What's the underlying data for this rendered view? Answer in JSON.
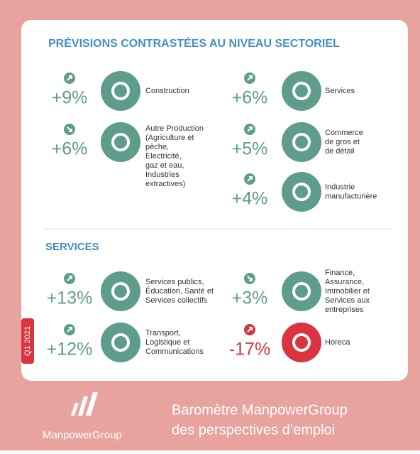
{
  "sections": [
    {
      "title": "PRÉVISIONS CONTRASTÉES AU NIVEAU SECTORIEL",
      "columns": [
        [
          {
            "change": "+9%",
            "trend": "up",
            "label": [
              "Construction"
            ]
          },
          {
            "change": "+6%",
            "trend": "down",
            "label": [
              "Autre Production",
              "(Agriculture et",
              "pêche,",
              "Electricité,",
              "gaz et eau,",
              "Industries",
              "extractives)"
            ]
          }
        ],
        [
          {
            "change": "+6%",
            "trend": "up",
            "label": [
              "Services"
            ]
          },
          {
            "change": "+5%",
            "trend": "up",
            "label": [
              "Commerce",
              "de gros et",
              "de détail"
            ]
          },
          {
            "change": "+4%",
            "trend": "up",
            "label": [
              "Industrie",
              "manufacturière"
            ]
          }
        ]
      ]
    },
    {
      "title": "SERVICES",
      "columns": [
        [
          {
            "change": "+13%",
            "trend": "up",
            "label": [
              "Services publics,",
              "Éducation, Santé et",
              "Services collectifs"
            ]
          },
          {
            "change": "+12%",
            "trend": "up",
            "label": [
              "Transport,",
              "Logistique et",
              "Communications"
            ]
          }
        ],
        [
          {
            "change": "+3%",
            "trend": "down",
            "label": [
              "Finance,",
              "Assurance,",
              "Immobilier et",
              "Services aux",
              "entreprises"
            ]
          },
          {
            "change": "-17%",
            "trend": "up",
            "label": [
              "Horeca"
            ]
          }
        ]
      ]
    }
  ],
  "tab": "Q1 2021",
  "footer": {
    "brand": "ManpowerGroup",
    "tagline": [
      "Baromètre ManpowerGroup",
      "des perspectives d’emploi"
    ]
  }
}
